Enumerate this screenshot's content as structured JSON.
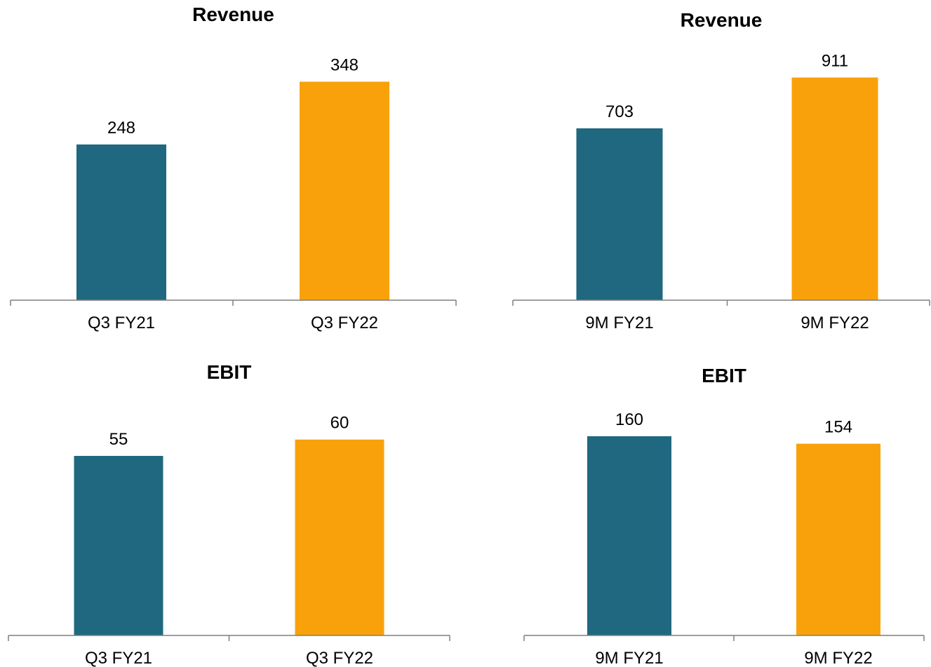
{
  "colors": {
    "fy21": "#1f6880",
    "fy22": "#f9a10a",
    "axis": "#7f7f7f"
  },
  "chart_data": [
    {
      "type": "bar",
      "title": "Revenue",
      "categories": [
        "Q3 FY21",
        "Q3 FY22"
      ],
      "values": [
        248,
        348
      ],
      "ylim": [
        0,
        400
      ],
      "grid": false
    },
    {
      "type": "bar",
      "title": "Revenue",
      "categories": [
        "9M FY21",
        "9M FY22"
      ],
      "values": [
        703,
        911
      ],
      "ylim": [
        0,
        1000
      ],
      "grid": false
    },
    {
      "type": "bar",
      "title": "EBIT",
      "categories": [
        "Q3 FY21",
        "Q3 FY22"
      ],
      "values": [
        55,
        60
      ],
      "ylim": [
        0,
        70
      ],
      "grid": false
    },
    {
      "type": "bar",
      "title": "EBIT",
      "categories": [
        "9M FY21",
        "9M FY22"
      ],
      "values": [
        160,
        154
      ],
      "ylim": [
        0,
        180
      ],
      "grid": false
    }
  ]
}
